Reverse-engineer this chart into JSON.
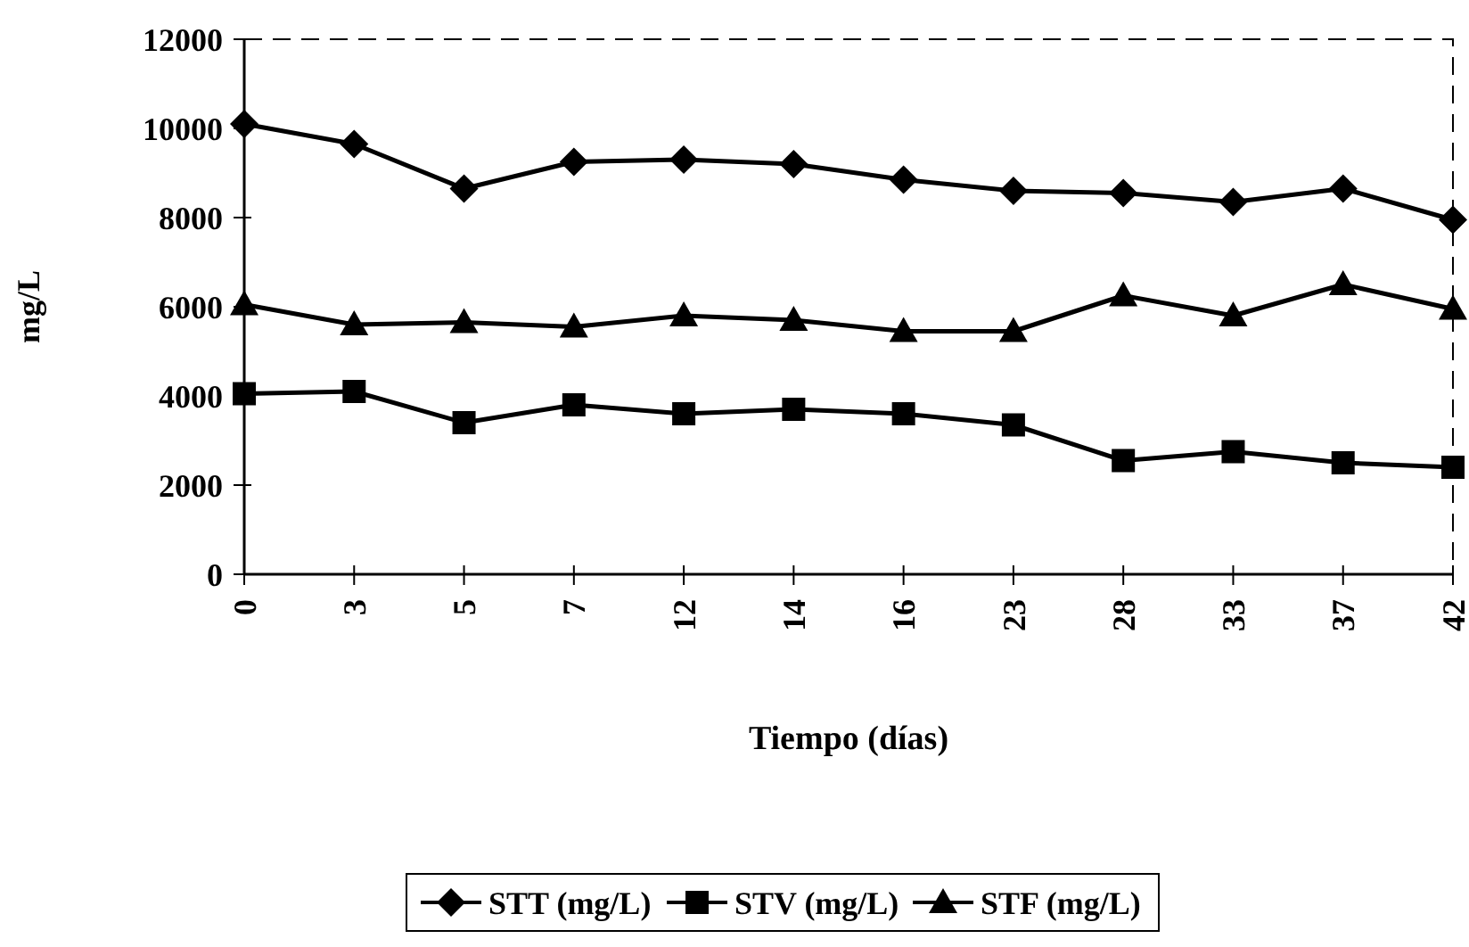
{
  "chart_data": {
    "type": "line",
    "xlabel": "Tiempo (días)",
    "ylabel": "mg/L",
    "categories": [
      "0",
      "3",
      "5",
      "7",
      "12",
      "14",
      "16",
      "23",
      "28",
      "33",
      "37",
      "42"
    ],
    "ylim": [
      0,
      12000
    ],
    "yticks": [
      0,
      2000,
      4000,
      6000,
      8000,
      10000,
      12000
    ],
    "legend": "bottom",
    "grid": false,
    "line_style": "solid",
    "series": [
      {
        "name": "STT (mg/L)",
        "color": "#000000",
        "marker": "diamond",
        "values": [
          10100,
          9650,
          8650,
          9250,
          9300,
          9200,
          8850,
          8600,
          8550,
          8350,
          8650,
          7950
        ]
      },
      {
        "name": "STV (mg/L)",
        "color": "#000000",
        "marker": "square",
        "values": [
          4050,
          4100,
          3400,
          3800,
          3600,
          3700,
          3600,
          3350,
          2550,
          2750,
          2500,
          2400
        ]
      },
      {
        "name": "STF (mg/L)",
        "color": "#000000",
        "marker": "triangle",
        "values": [
          6050,
          5600,
          5650,
          5550,
          5800,
          5700,
          5450,
          5450,
          6250,
          5800,
          6500,
          5950
        ]
      }
    ]
  }
}
